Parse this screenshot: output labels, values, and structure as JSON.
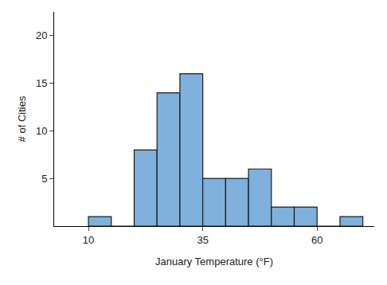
{
  "chart_data": {
    "type": "histogram",
    "x_label": "January Temperature (°F)",
    "y_label": "# of Cities",
    "bins": [
      10,
      15,
      20,
      25,
      30,
      35,
      40,
      45,
      50,
      55,
      60,
      65,
      70
    ],
    "values": [
      1,
      0,
      8,
      14,
      16,
      5,
      5,
      6,
      2,
      2,
      0,
      1
    ],
    "color": "#7fb1dc",
    "xlim": [
      2.5,
      72.5
    ],
    "ylim": [
      0,
      22.5
    ],
    "xticks": [
      10,
      35,
      60
    ],
    "yticks": [
      5,
      10,
      15,
      20
    ],
    "grid": false
  }
}
